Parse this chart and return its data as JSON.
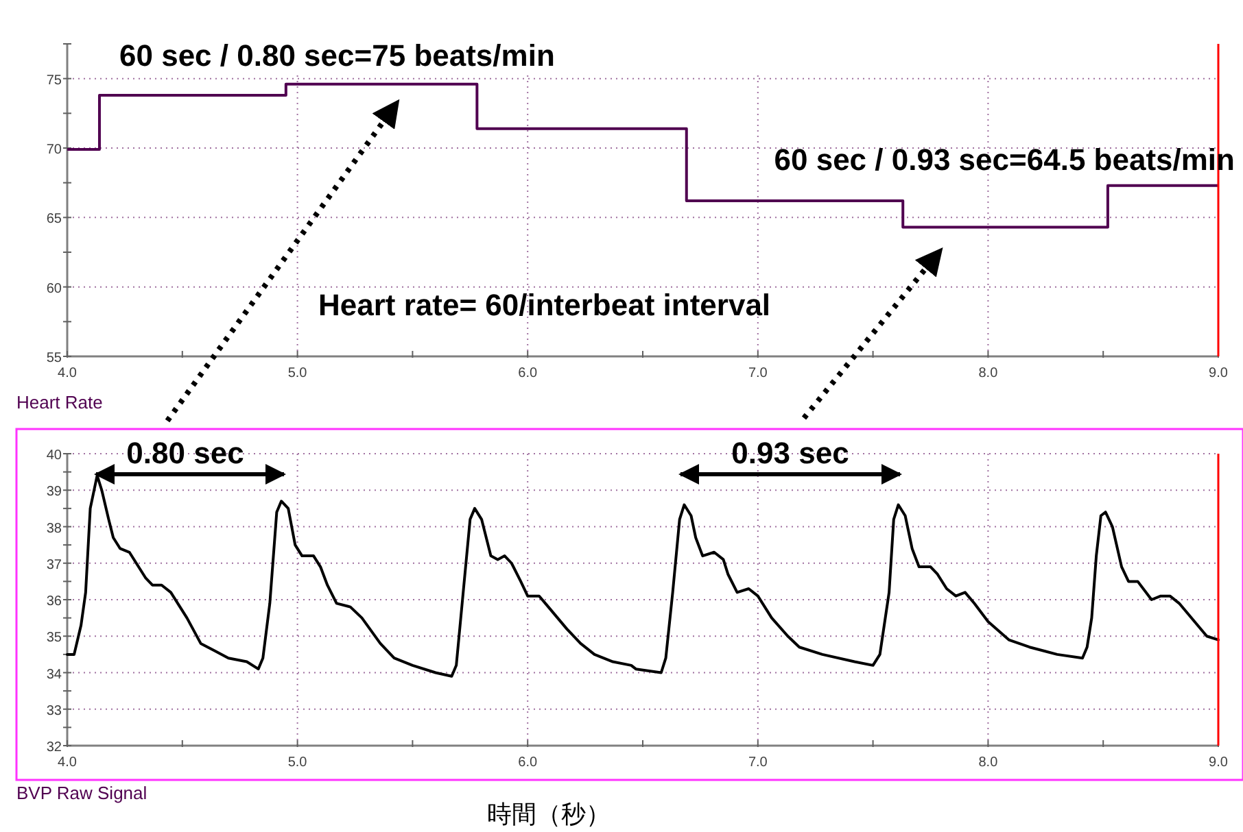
{
  "chart_data": [
    {
      "type": "step",
      "ylabel": "Heart Rate",
      "color": "#500050",
      "x": [
        4.0,
        4.14,
        4.95,
        5.78,
        6.69,
        7.63,
        8.52,
        9.0
      ],
      "values": [
        69.9,
        73.8,
        74.6,
        71.4,
        66.2,
        64.3,
        67.3,
        67.3
      ],
      "xlim": [
        4.0,
        9.0
      ],
      "xticks": [
        {
          "value": 4,
          "label": "4.0"
        },
        {
          "value": 4.5,
          "label": null
        },
        {
          "value": 5,
          "label": "5.0"
        },
        {
          "value": 5.5,
          "label": null
        },
        {
          "value": 6,
          "label": "6.0"
        },
        {
          "value": 6.5,
          "label": null
        },
        {
          "value": 7,
          "label": "7.0"
        },
        {
          "value": 7.5,
          "label": null
        },
        {
          "value": 8,
          "label": "8.0"
        },
        {
          "value": 8.5,
          "label": null
        },
        {
          "value": 9,
          "label": "9.0"
        }
      ],
      "ylim": [
        55,
        77.5
      ],
      "yticks": [
        55,
        {
          "value": 57.5,
          "label": null
        },
        60,
        {
          "value": 62.5,
          "label": null
        },
        65,
        {
          "value": 67.5,
          "label": null
        },
        70,
        {
          "value": 72.5,
          "label": null
        },
        75,
        {
          "value": 77.5,
          "label": null
        }
      ],
      "grid": true,
      "ref_lines": [
        {
          "axis": "x",
          "value": 9.0,
          "color": "#ff0000"
        }
      ],
      "annotations": [
        "60 sec / 0.80 sec=75 beats/min",
        "60 sec / 0.93 sec=64.5 beats/min",
        "Heart rate= 60/interbeat interval"
      ]
    },
    {
      "type": "line",
      "ylabel": "BVP Raw Signal",
      "xlabel": "時間（秒）",
      "color": "#000000",
      "x": [
        4.0,
        4.03,
        4.06,
        4.08,
        4.1,
        4.13,
        4.15,
        4.18,
        4.2,
        4.23,
        4.27,
        4.3,
        4.34,
        4.37,
        4.41,
        4.45,
        4.48,
        4.52,
        4.58,
        4.64,
        4.7,
        4.78,
        4.83,
        4.85,
        4.88,
        4.91,
        4.93,
        4.96,
        4.99,
        5.02,
        5.07,
        5.1,
        5.13,
        5.17,
        5.23,
        5.28,
        5.36,
        5.42,
        5.5,
        5.6,
        5.67,
        5.69,
        5.72,
        5.75,
        5.77,
        5.8,
        5.84,
        5.87,
        5.9,
        5.93,
        5.97,
        6.0,
        6.05,
        6.09,
        6.17,
        6.23,
        6.29,
        6.37,
        6.45,
        6.47,
        6.58,
        6.6,
        6.63,
        6.66,
        6.68,
        6.71,
        6.73,
        6.76,
        6.81,
        6.85,
        6.87,
        6.91,
        6.96,
        7.0,
        7.06,
        7.13,
        7.18,
        7.28,
        7.42,
        7.5,
        7.53,
        7.57,
        7.59,
        7.61,
        7.64,
        7.67,
        7.7,
        7.75,
        7.78,
        7.82,
        7.86,
        7.9,
        7.94,
        8.0,
        8.09,
        8.18,
        8.3,
        8.41,
        8.43,
        8.45,
        8.47,
        8.49,
        8.51,
        8.54,
        8.58,
        8.61,
        8.65,
        8.71,
        8.75,
        8.79,
        8.83,
        8.91,
        8.95,
        9.0
      ],
      "values": [
        34.5,
        34.5,
        35.3,
        36.2,
        38.5,
        39.4,
        39.0,
        38.2,
        37.7,
        37.4,
        37.3,
        37.0,
        36.6,
        36.4,
        36.4,
        36.2,
        35.9,
        35.5,
        34.8,
        34.6,
        34.4,
        34.3,
        34.1,
        34.4,
        35.9,
        38.4,
        38.7,
        38.5,
        37.5,
        37.2,
        37.2,
        36.9,
        36.4,
        35.9,
        35.8,
        35.5,
        34.8,
        34.4,
        34.2,
        34.0,
        33.9,
        34.2,
        36.2,
        38.2,
        38.5,
        38.2,
        37.2,
        37.1,
        37.2,
        37.0,
        36.5,
        36.1,
        36.1,
        35.8,
        35.2,
        34.8,
        34.5,
        34.3,
        34.2,
        34.1,
        34.0,
        34.4,
        36.2,
        38.2,
        38.6,
        38.3,
        37.7,
        37.2,
        37.3,
        37.1,
        36.7,
        36.2,
        36.3,
        36.1,
        35.5,
        35.0,
        34.7,
        34.5,
        34.3,
        34.2,
        34.5,
        36.2,
        38.2,
        38.6,
        38.3,
        37.4,
        36.9,
        36.9,
        36.7,
        36.3,
        36.1,
        36.2,
        35.9,
        35.4,
        34.9,
        34.7,
        34.5,
        34.4,
        34.7,
        35.5,
        37.2,
        38.3,
        38.4,
        38.0,
        36.9,
        36.5,
        36.5,
        36.0,
        36.1,
        36.1,
        35.9,
        35.3,
        35.0,
        34.9
      ],
      "xlim": [
        4.0,
        9.0
      ],
      "xticks": [
        {
          "value": 4,
          "label": "4.0"
        },
        {
          "value": 4.5,
          "label": null
        },
        {
          "value": 5,
          "label": "5.0"
        },
        {
          "value": 5.5,
          "label": null
        },
        {
          "value": 6,
          "label": "6.0"
        },
        {
          "value": 6.5,
          "label": null
        },
        {
          "value": 7,
          "label": "7.0"
        },
        {
          "value": 7.5,
          "label": null
        },
        {
          "value": 8,
          "label": "8.0"
        },
        {
          "value": 8.5,
          "label": null
        },
        {
          "value": 9,
          "label": "9.0"
        }
      ],
      "ylim": [
        32,
        40
      ],
      "yticks": [
        32,
        {
          "value": 32.5,
          "label": null
        },
        33,
        {
          "value": 33.5,
          "label": null
        },
        34,
        {
          "value": 34.5,
          "label": null
        },
        35,
        {
          "value": 35.5,
          "label": null
        },
        36,
        {
          "value": 36.5,
          "label": null
        },
        37,
        {
          "value": 37.5,
          "label": null
        },
        38,
        {
          "value": 38.5,
          "label": null
        },
        39,
        {
          "value": 39.5,
          "label": null
        },
        40
      ],
      "grid": true,
      "ref_lines": [
        {
          "axis": "x",
          "value": 9.0,
          "color": "#ff0000"
        }
      ],
      "annotations": [
        "0.80 sec",
        "0.93 sec"
      ]
    }
  ]
}
